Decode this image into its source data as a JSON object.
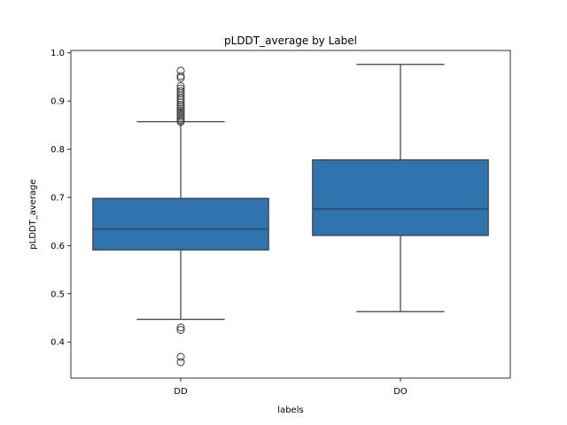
{
  "chart_data": {
    "type": "box",
    "title": "pLDDT_average by Label",
    "xlabel": "labels",
    "ylabel": "pLDDT_average",
    "categories": [
      "DD",
      "DO"
    ],
    "ylim": [
      0.325,
      1.005
    ],
    "yticks": [
      0.4,
      0.5,
      0.6,
      0.7,
      0.8,
      0.9,
      1.0
    ],
    "ytick_labels": [
      "0.4",
      "0.5",
      "0.6",
      "0.7",
      "0.8",
      "0.9",
      "1.0"
    ],
    "grid": false,
    "color": "#2e75b0",
    "boxes": [
      {
        "label": "DD",
        "whisker_low": 0.447,
        "q1": 0.591,
        "median": 0.634,
        "q3": 0.698,
        "whisker_high": 0.857,
        "outliers": [
          0.358,
          0.369,
          0.425,
          0.43,
          0.857,
          0.86,
          0.864,
          0.868,
          0.872,
          0.876,
          0.88,
          0.884,
          0.888,
          0.892,
          0.897,
          0.902,
          0.906,
          0.911,
          0.916,
          0.921,
          0.926,
          0.931,
          0.948,
          0.952,
          0.963
        ]
      },
      {
        "label": "DO",
        "whisker_low": 0.463,
        "q1": 0.621,
        "median": 0.676,
        "q3": 0.778,
        "whisker_high": 0.976,
        "outliers": []
      }
    ]
  }
}
